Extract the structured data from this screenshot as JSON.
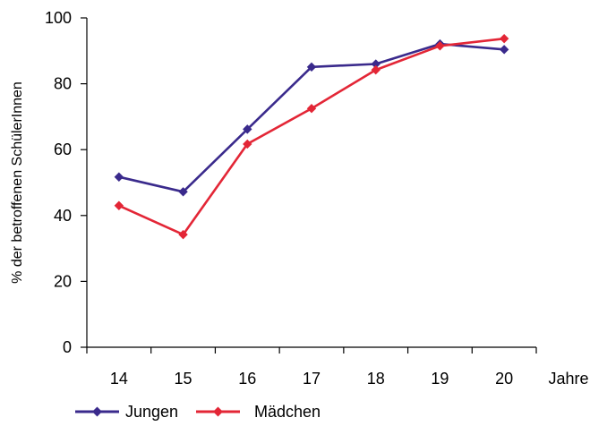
{
  "chart_data": {
    "type": "line",
    "categories": [
      "14",
      "15",
      "16",
      "17",
      "18",
      "19",
      "20"
    ],
    "xlabel": "Jahre",
    "ylabel": "% der betroffenen SchülerInnen",
    "ylim": [
      0,
      100
    ],
    "yticks": [
      "0",
      "20",
      "40",
      "60",
      "80",
      "100"
    ],
    "grid": false,
    "legend_position": "bottom-left",
    "series": [
      {
        "name": "Jungen",
        "color": "#3a2a8c",
        "marker": "diamond",
        "values": [
          51.7,
          47.2,
          66.2,
          85.1,
          86.0,
          92.1,
          90.4
        ]
      },
      {
        "name": "Mädchen",
        "color": "#e32636",
        "marker": "diamond",
        "values": [
          43.0,
          34.2,
          61.7,
          72.5,
          84.2,
          91.5,
          93.7
        ]
      }
    ]
  }
}
